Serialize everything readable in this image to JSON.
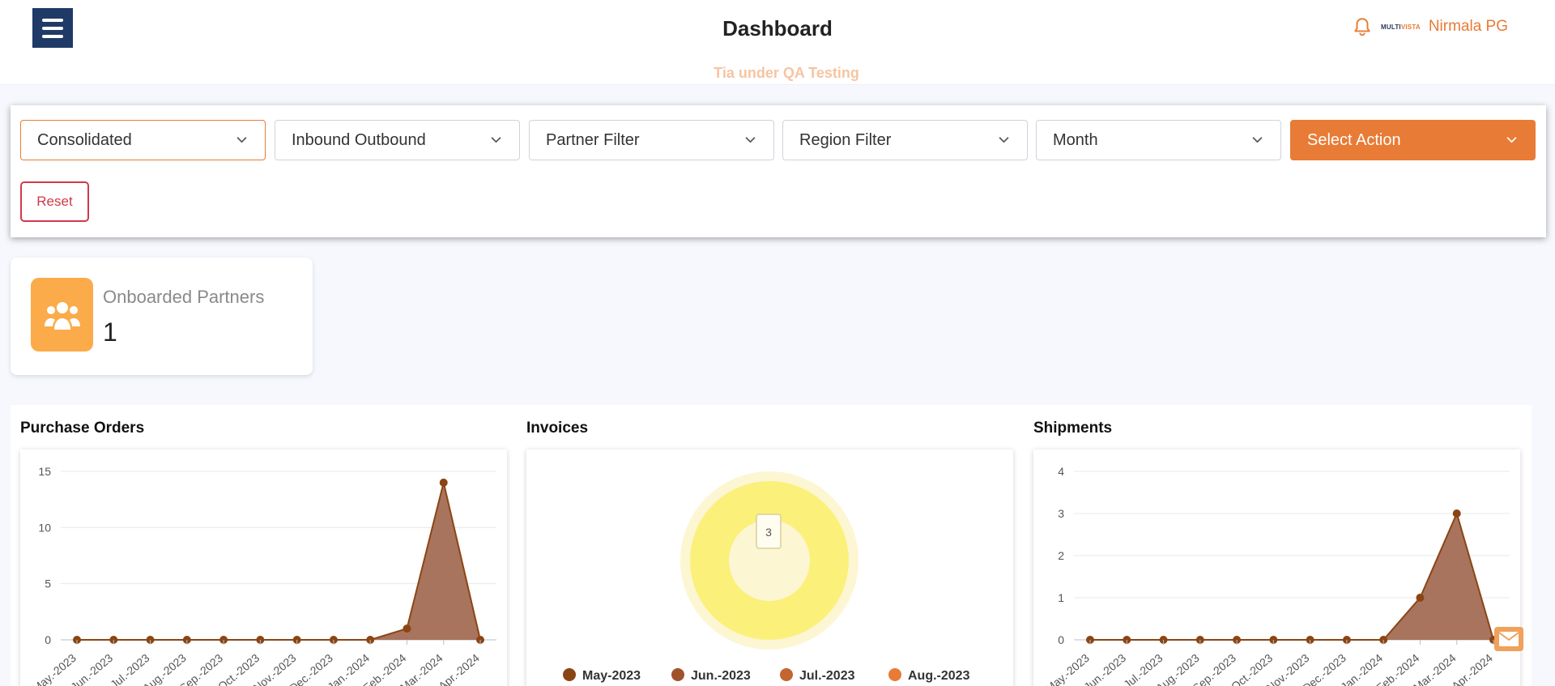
{
  "header": {
    "title": "Dashboard",
    "env_banner": "Tia under QA Testing",
    "user_name": "Nirmala PG",
    "logo_text_a": "MULTI",
    "logo_text_b": "VISTA",
    "icons": {
      "menu": "hamburger-icon",
      "notifications": "bell-icon"
    }
  },
  "filters": {
    "view": "Consolidated",
    "direction": "Inbound Outbound",
    "partner_placeholder": "Partner Filter",
    "region_placeholder": "Region Filter",
    "period": "Month",
    "action": "Select Action",
    "reset_label": "Reset"
  },
  "stats": {
    "onboarded_label": "Onboarded Partners",
    "onboarded_value": "1"
  },
  "colors": {
    "accent": "#e87b35",
    "navy": "#1f3a66",
    "reset": "#d2384a",
    "area_fill": "#a36d55",
    "area_line": "#8b4513",
    "donut": "#fbf07a",
    "donut_halo": "#fdf6d3"
  },
  "chart_data": [
    {
      "type": "area",
      "title": "Purchase Orders",
      "categories": [
        "May.-2023",
        "Jun.-2023",
        "Jul.-2023",
        "Aug.-2023",
        "Sep.-2023",
        "Oct.-2023",
        "Nov.-2023",
        "Dec.-2023",
        "Jan.-2024",
        "Feb.-2024",
        "Mar.-2024",
        "Apr.-2024"
      ],
      "values": [
        0,
        0,
        0,
        0,
        0,
        0,
        0,
        0,
        0,
        1,
        14,
        0
      ],
      "y_ticks": [
        0,
        5,
        10,
        15
      ],
      "ylim": [
        0,
        15
      ],
      "grid": true
    },
    {
      "type": "pie",
      "title": "Invoices",
      "donut": true,
      "slices": [
        {
          "label": "May-2023",
          "value": 0,
          "color": "#8b4513"
        },
        {
          "label": "Jun.-2023",
          "value": 0,
          "color": "#a0522d"
        },
        {
          "label": "Jul.-2023",
          "value": 0,
          "color": "#c2652e"
        },
        {
          "label": "Aug.-2023",
          "value": 3,
          "color": "#e87b35"
        }
      ],
      "tooltip": "3",
      "legend": "bottom"
    },
    {
      "type": "area",
      "title": "Shipments",
      "categories": [
        "May.-2023",
        "Jun.-2023",
        "Jul.-2023",
        "Aug.-2023",
        "Sep.-2023",
        "Oct.-2023",
        "Nov.-2023",
        "Dec.-2023",
        "Jan.-2024",
        "Feb.-2024",
        "Mar.-2024",
        "Apr.-2024"
      ],
      "values": [
        0,
        0,
        0,
        0,
        0,
        0,
        0,
        0,
        0,
        1,
        3,
        0
      ],
      "y_ticks": [
        0,
        1,
        2,
        3,
        4
      ],
      "ylim": [
        0,
        4
      ],
      "grid": true
    }
  ]
}
